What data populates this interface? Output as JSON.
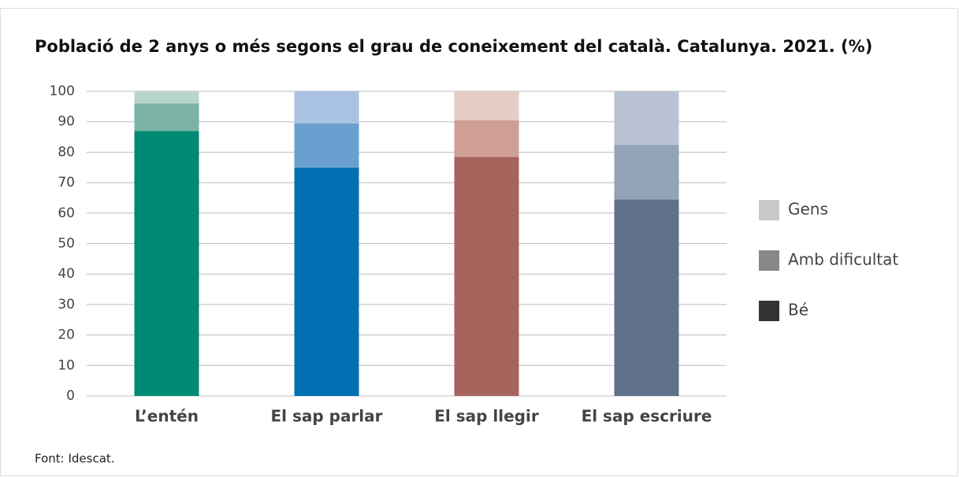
{
  "chart_data": {
    "type": "stacked_bar",
    "title": "Població de 2 anys o més segons el grau de coneixement del català. Catalunya. 2021. (%)",
    "source": "Font: Idescat.",
    "categories": [
      "L’entén",
      "El sap parlar",
      "El sap llegir",
      "El sap escriure"
    ],
    "series": [
      {
        "name": "Bé",
        "color": "#333333",
        "values": [
          87,
          75,
          78.5,
          64.5
        ],
        "colors": [
          "#008a73",
          "#0070b3",
          "#a8635d",
          "#5f718a"
        ]
      },
      {
        "name": "Amb dificultat",
        "color": "#888888",
        "values": [
          9,
          14.5,
          12,
          18
        ],
        "colors": [
          "#7ab3a5",
          "#6aa0d0",
          "#cf9f97",
          "#93a3b8"
        ]
      },
      {
        "name": "Gens",
        "color": "#c8c8c8",
        "values": [
          4,
          10.5,
          9.5,
          17.5
        ],
        "colors": [
          "#b9d6cc",
          "#a9c2e2",
          "#e6cbc6",
          "#b9c3d3"
        ]
      }
    ],
    "ylim": [
      0,
      100
    ],
    "yticks": [
      0,
      10,
      20,
      30,
      40,
      50,
      60,
      70,
      80,
      90,
      100
    ],
    "grid": true,
    "legend": "right"
  }
}
